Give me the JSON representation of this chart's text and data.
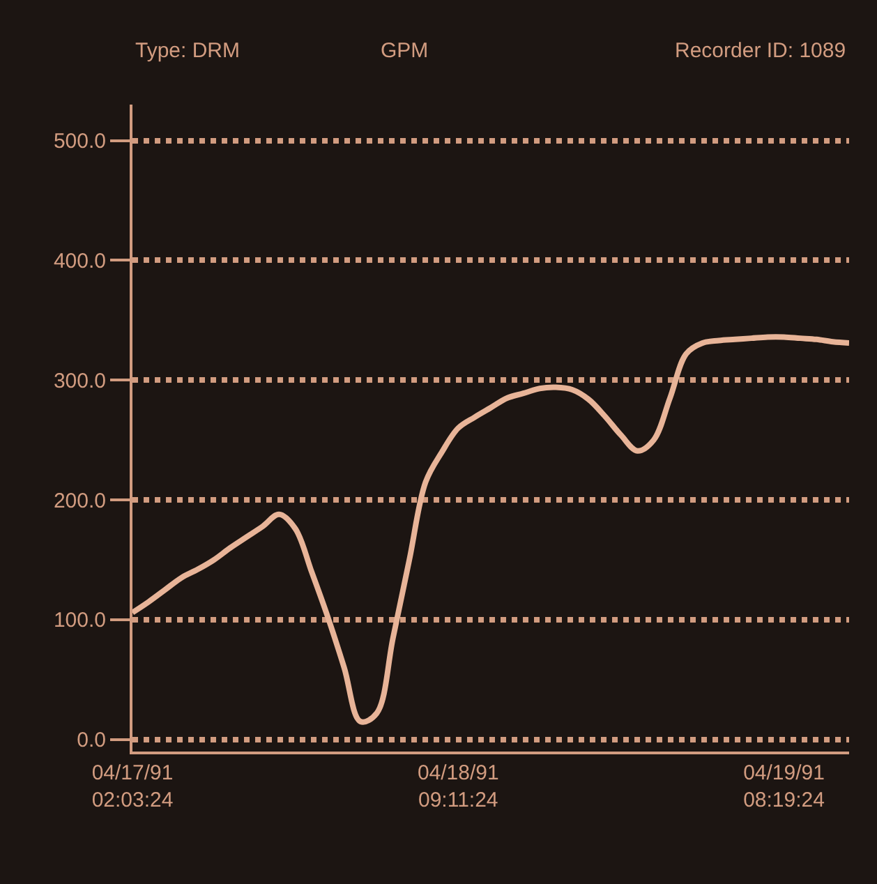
{
  "chart_data": {
    "type": "line",
    "ylabel": "GPM",
    "annotations": [
      "Type: DRM",
      "Recorder ID: 1089"
    ],
    "categories": [
      "04/17/91\n02:03:24",
      null,
      null,
      null,
      null,
      null,
      null,
      null,
      null,
      null,
      null,
      null,
      null,
      null,
      null,
      null,
      null,
      null,
      null,
      null,
      "04/18/91\n09:11:24",
      null,
      null,
      null,
      null,
      null,
      null,
      null,
      null,
      null,
      null,
      null,
      null,
      null,
      null,
      null,
      null,
      null,
      null,
      null,
      "04/19/91\n08:19:24",
      null,
      null,
      null,
      null
    ],
    "series": [
      {
        "color": "#e8b498",
        "values": [
          106,
          115,
          125,
          135,
          142,
          150,
          160,
          169,
          178,
          188,
          176,
          140,
          102,
          60,
          15,
          22,
          85,
          150,
          215,
          240,
          260,
          269,
          277,
          285,
          289,
          293,
          294,
          292,
          284,
          270,
          254,
          241,
          250,
          285,
          322,
          331,
          333,
          334,
          335,
          336,
          336,
          335,
          334,
          332,
          331
        ]
      }
    ],
    "ylim": [
      -10,
      530
    ],
    "yticks": [
      {
        "value": 0,
        "label": "0.0"
      },
      {
        "value": 100,
        "label": "100.0"
      },
      {
        "value": 200,
        "label": "200.0"
      },
      {
        "value": 300,
        "label": "300.0"
      },
      {
        "value": 400,
        "label": "400.0"
      },
      {
        "value": 500,
        "label": "500.0"
      }
    ],
    "grid": "y",
    "marker": "none",
    "line_style": "solid"
  }
}
